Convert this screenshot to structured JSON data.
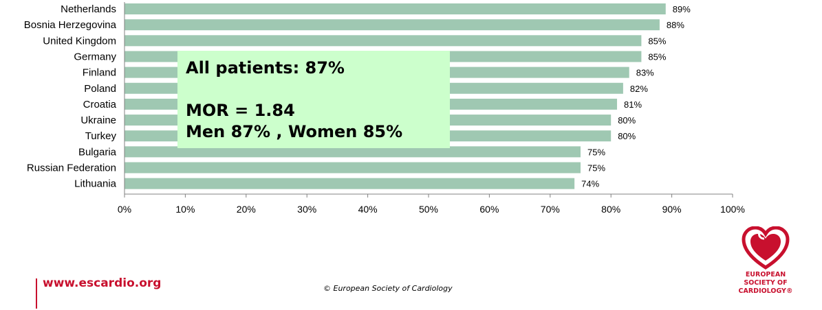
{
  "chart_data": {
    "type": "bar",
    "orientation": "horizontal",
    "categories": [
      "Netherlands",
      "Bosnia Herzegovina",
      "United Kingdom",
      "Germany",
      "Finland",
      "Poland",
      "Croatia",
      "Ukraine",
      "Turkey",
      "Bulgaria",
      "Russian Federation",
      "Lithuania"
    ],
    "values": [
      89,
      88,
      85,
      85,
      83,
      82,
      81,
      80,
      80,
      75,
      75,
      74
    ],
    "value_labels": [
      "89%",
      "88%",
      "85%",
      "85%",
      "83%",
      "82%",
      "81%",
      "80%",
      "80%",
      "75%",
      "75%",
      "74%"
    ],
    "x_ticks": [
      "0%",
      "10%",
      "20%",
      "30%",
      "40%",
      "50%",
      "60%",
      "70%",
      "80%",
      "90%",
      "100%"
    ],
    "xlim": [
      0,
      100
    ],
    "bar_color": "#9fc8b2",
    "grid": false,
    "title": "",
    "xlabel": "",
    "ylabel": ""
  },
  "callout": {
    "line1": "All patients: 87%",
    "line2": "MOR = 1.84",
    "line3": "Men 87% , Women 85%",
    "background": "#ccffcc"
  },
  "footer": {
    "url": "www.escardio.org",
    "copyright": "© European Society of Cardiology",
    "brand_color": "#c8102e"
  },
  "logo": {
    "icon": "heart-logo-icon",
    "text_line1": "EUROPEAN",
    "text_line2": "SOCIETY OF",
    "text_line3": "CARDIOLOGY®"
  }
}
